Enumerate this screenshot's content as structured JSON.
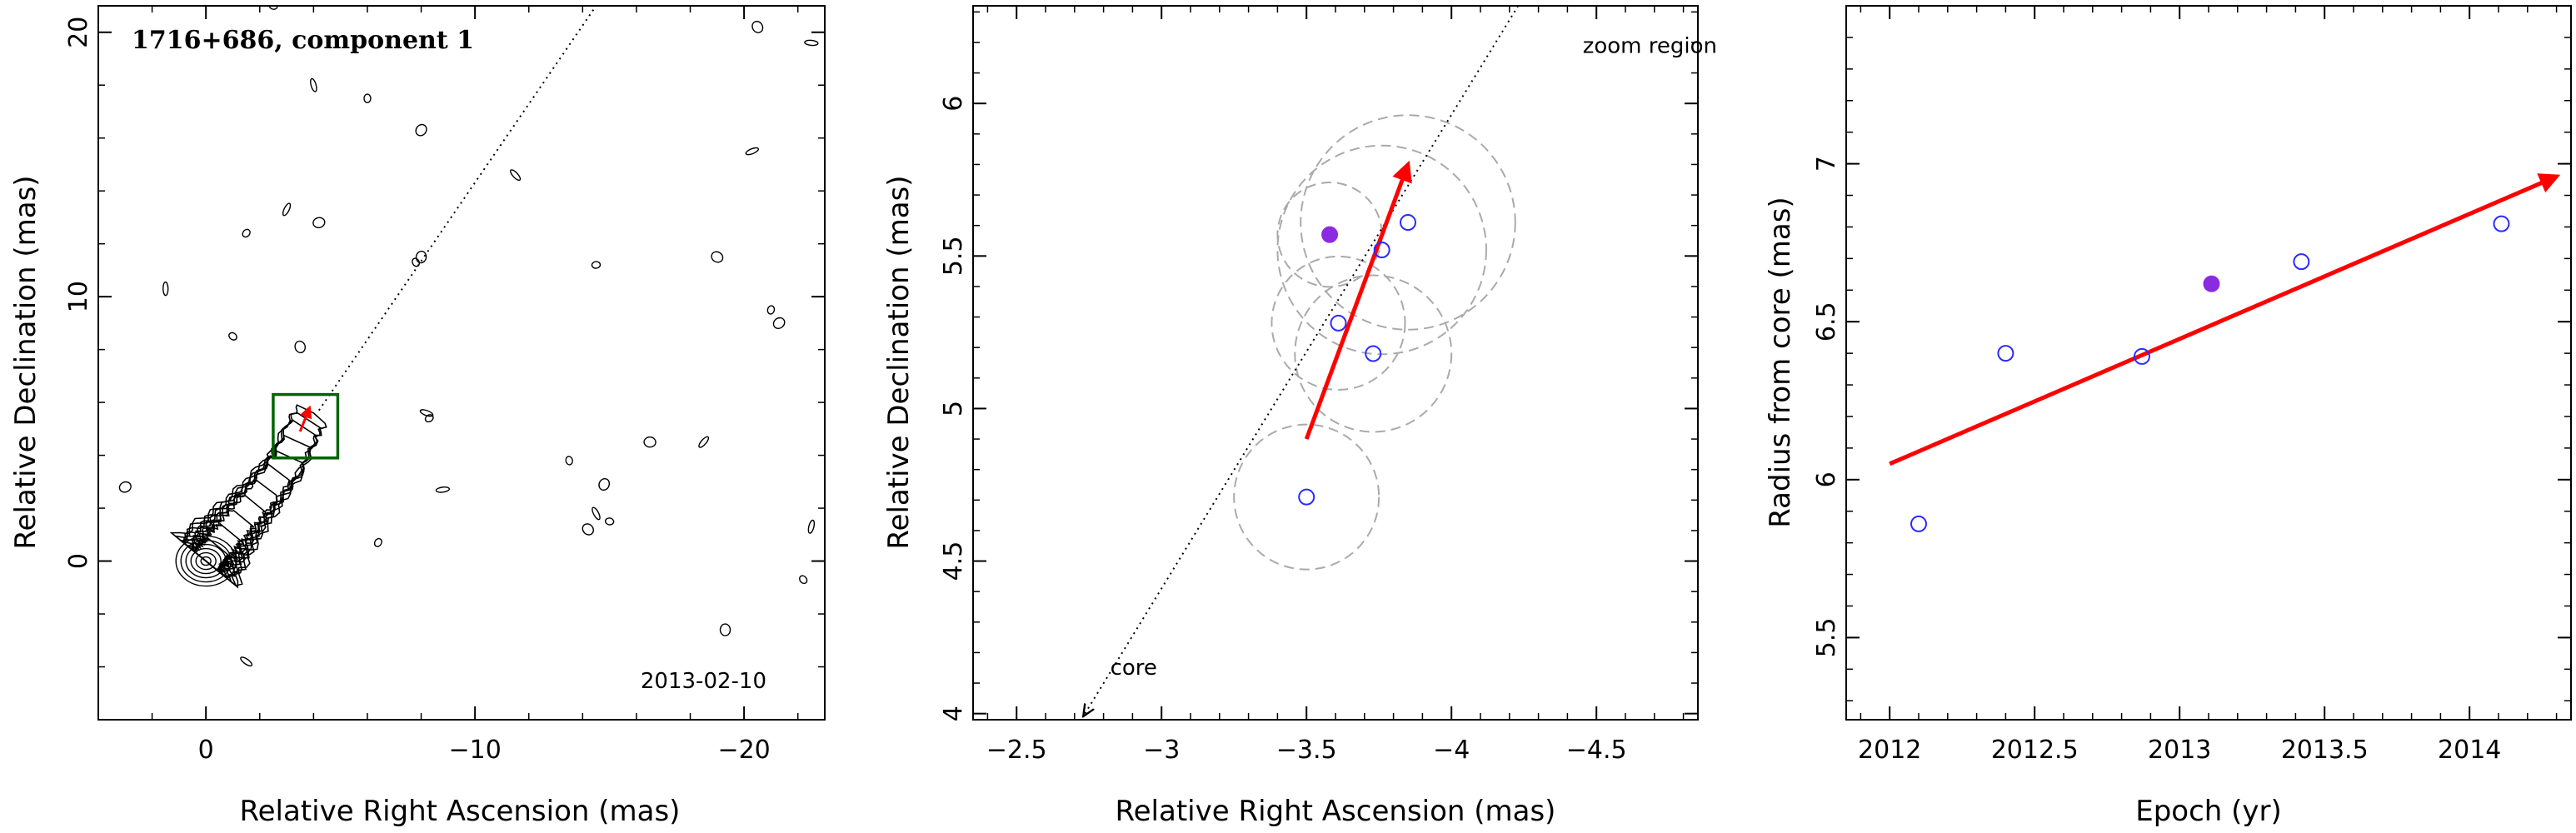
{
  "colors": {
    "arrow": "#ff0000",
    "box": "#006400",
    "open_marker": "#2b2bff",
    "filled_marker": "#8a2be2",
    "circles": "#aaaaaa"
  },
  "chart_data": [
    {
      "type": "contour",
      "title": "1716+686, component 1",
      "annotation": "2013-02-10",
      "xlabel": "Relative Right Ascension (mas)",
      "ylabel": "Relative Declination (mas)",
      "xlim": [
        4.0,
        -23.0
      ],
      "ylim": [
        -6.0,
        21.0
      ],
      "x_ticks": [
        0,
        -10,
        -20
      ],
      "x_tick_labels": [
        "0",
        "−10",
        "−20"
      ],
      "y_ticks": [
        0,
        10,
        20
      ],
      "y_tick_labels": [
        "0",
        "10",
        "20"
      ],
      "core": {
        "x": 0,
        "y": 0
      },
      "jet_path": [
        [
          0,
          0
        ],
        [
          -1,
          1.2
        ],
        [
          -2,
          2.4
        ],
        [
          -3,
          3.7
        ],
        [
          -3.6,
          5.0
        ],
        [
          -4,
          5.6
        ]
      ],
      "jet_direction_line": {
        "from": [
          -4.2,
          5.7
        ],
        "to": [
          -14.5,
          21.0
        ]
      },
      "zoom_box": {
        "x": [
          -2.5,
          -4.9
        ],
        "y": [
          3.9,
          6.3
        ]
      },
      "arrow": {
        "from": [
          -3.5,
          4.9
        ],
        "to": [
          -3.85,
          5.8
        ]
      },
      "noise_contours": [
        [
          -6.0,
          17.5
        ],
        [
          -8.0,
          16.3
        ],
        [
          -4.0,
          18.0
        ],
        [
          -2.5,
          21.0
        ],
        [
          -20.5,
          20.2
        ],
        [
          -22.5,
          19.6
        ],
        [
          -1.5,
          12.4
        ],
        [
          -4.2,
          12.8
        ],
        [
          -3.0,
          13.3
        ],
        [
          -7.8,
          11.3
        ],
        [
          -8.0,
          11.5
        ],
        [
          -11.5,
          14.6
        ],
        [
          -14.5,
          11.2
        ],
        [
          -19.0,
          11.5
        ],
        [
          -20.3,
          15.5
        ],
        [
          -21.0,
          9.5
        ],
        [
          -21.3,
          9.0
        ],
        [
          1.5,
          10.3
        ],
        [
          -1.0,
          8.5
        ],
        [
          -3.5,
          8.1
        ],
        [
          -8.2,
          5.6
        ],
        [
          -8.3,
          5.4
        ],
        [
          -16.5,
          4.5
        ],
        [
          -18.5,
          4.5
        ],
        [
          -13.5,
          3.8
        ],
        [
          -14.8,
          2.9
        ],
        [
          -14.5,
          1.8
        ],
        [
          -15.0,
          1.5
        ],
        [
          -14.2,
          1.2
        ],
        [
          -8.8,
          2.7
        ],
        [
          -6.4,
          0.7
        ],
        [
          3.0,
          2.8
        ],
        [
          -22.5,
          1.3
        ],
        [
          -22.2,
          -0.7
        ],
        [
          -19.3,
          -2.6
        ],
        [
          -1.5,
          -3.8
        ]
      ]
    },
    {
      "type": "scatter",
      "annotations": [
        "zoom region",
        "core"
      ],
      "xlabel": "Relative Right Ascension (mas)",
      "ylabel": "Relative Declination (mas)",
      "xlim": [
        -2.35,
        -4.85
      ],
      "ylim": [
        3.98,
        6.32
      ],
      "x_ticks": [
        -2.5,
        -3,
        -3.5,
        -4,
        -4.5
      ],
      "x_tick_labels": [
        "−2.5",
        "−3",
        "−3.5",
        "−4",
        "−4.5"
      ],
      "y_ticks": [
        4,
        4.5,
        5,
        5.5,
        6
      ],
      "y_tick_labels": [
        "4",
        "4.5",
        "5",
        "5.5",
        "6"
      ],
      "points": [
        {
          "x": -3.5,
          "y": 4.71,
          "r": 0.25,
          "filled": false
        },
        {
          "x": -3.61,
          "y": 5.28,
          "r": 0.23,
          "filled": false
        },
        {
          "x": -3.73,
          "y": 5.18,
          "r": 0.27,
          "filled": false
        },
        {
          "x": -3.76,
          "y": 5.52,
          "r": 0.36,
          "filled": false
        },
        {
          "x": -3.85,
          "y": 5.61,
          "r": 0.37,
          "filled": false
        },
        {
          "x": -3.58,
          "y": 5.57,
          "r": 0.18,
          "filled": true
        }
      ],
      "arrow": {
        "from": [
          -3.5,
          4.9
        ],
        "to": [
          -3.85,
          5.8
        ]
      },
      "jet_line": {
        "from": [
          -2.73,
          3.98
        ],
        "to": [
          -4.23,
          6.32
        ]
      },
      "core_label_at": [
        -2.8,
        4.1
      ],
      "zoom_label_at": [
        -4.6,
        6.22
      ]
    },
    {
      "type": "scatter",
      "xlabel": "Epoch (yr)",
      "ylabel": "Radius from core (mas)",
      "xlim": [
        2011.85,
        2014.35
      ],
      "ylim": [
        5.24,
        7.5
      ],
      "x_ticks": [
        2012,
        2012.5,
        2013,
        2013.5,
        2014
      ],
      "x_tick_labels": [
        "2012",
        "2012.5",
        "2013",
        "2013.5",
        "2014"
      ],
      "y_ticks": [
        5.5,
        6,
        6.5,
        7
      ],
      "y_tick_labels": [
        "5.5",
        "6",
        "6.5",
        "7"
      ],
      "points": [
        {
          "x": 2012.1,
          "y": 5.86,
          "filled": false
        },
        {
          "x": 2012.4,
          "y": 6.4,
          "filled": false
        },
        {
          "x": 2012.87,
          "y": 6.39,
          "filled": false
        },
        {
          "x": 2013.11,
          "y": 6.62,
          "filled": true
        },
        {
          "x": 2013.42,
          "y": 6.69,
          "filled": false
        },
        {
          "x": 2014.11,
          "y": 6.81,
          "filled": false
        }
      ],
      "fit_arrow": {
        "from": [
          2012.0,
          6.05
        ],
        "to": [
          2014.3,
          6.96
        ]
      }
    }
  ]
}
